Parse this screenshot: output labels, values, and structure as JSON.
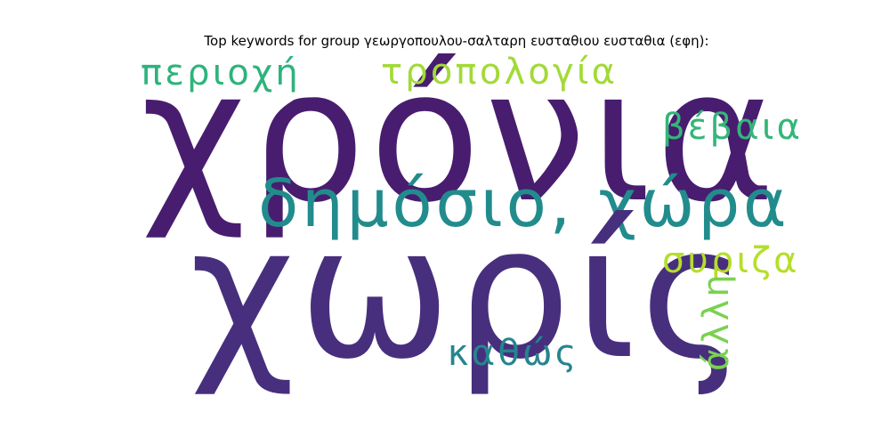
{
  "figure": {
    "title": "Top keywords for group γεωργοπουλου-σαλταρη ευσταθιου ευσταθια (εφη):"
  },
  "wordcloud": {
    "words": [
      {
        "text": "χρόνια",
        "color": "#481d6f"
      },
      {
        "text": "χωρίς",
        "color": "#472f7d"
      },
      {
        "text": "δημόσιο, χώρα",
        "color": "#228c8d"
      },
      {
        "text": "περιοχή",
        "color": "#2eb37c"
      },
      {
        "text": "τροπολογία",
        "color": "#a2da37"
      },
      {
        "text": "βέβαια",
        "color": "#34b679"
      },
      {
        "text": "συριζα",
        "color": "#b5de2b"
      },
      {
        "text": "καθώς",
        "color": "#25858e"
      },
      {
        "text": "άλλη",
        "color": "#7ad151"
      }
    ]
  }
}
